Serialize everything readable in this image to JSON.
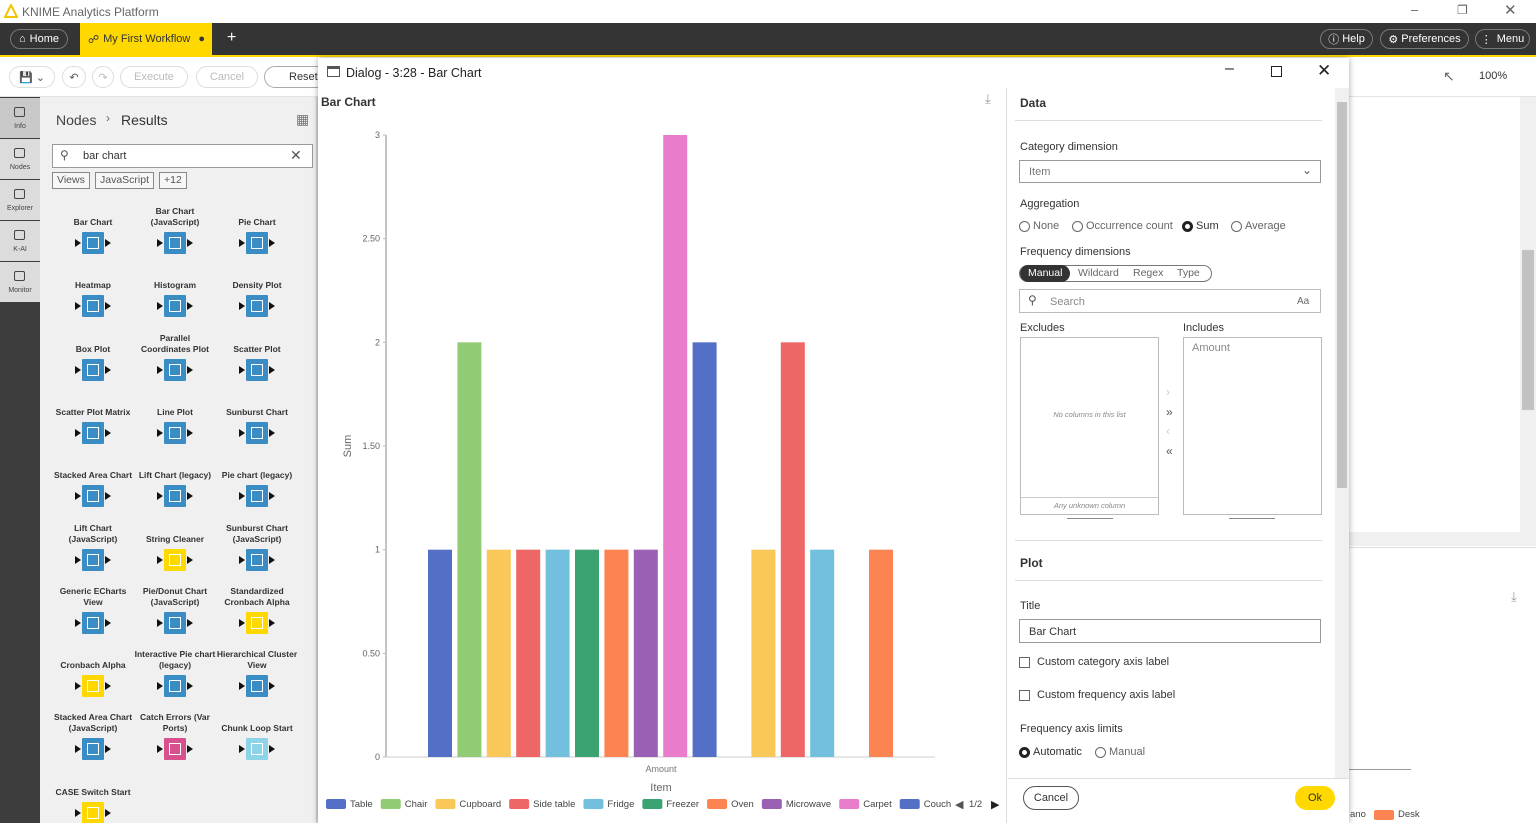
{
  "window": {
    "title": "KNIME Analytics Platform"
  },
  "tabs": {
    "home": "Home",
    "workflow": "My First Workflow",
    "help": "Help",
    "preferences": "Preferences",
    "menu": "Menu"
  },
  "toolbar": {
    "execute": "Execute",
    "cancel": "Cancel",
    "reset": "Reset",
    "zoom": "100%"
  },
  "sidebar": [
    "Info",
    "Nodes",
    "Explorer",
    "K-AI",
    "Monitor"
  ],
  "node_repository": {
    "breadcrumb": [
      "Nodes",
      "Results"
    ],
    "search": "bar chart",
    "tags": [
      "Views",
      "JavaScript",
      "+12"
    ],
    "nodes": [
      {
        "label": "Bar Chart",
        "color": "#3a8dc4"
      },
      {
        "label": "Bar Chart (JavaScript)",
        "color": "#3a8dc4"
      },
      {
        "label": "Pie Chart",
        "color": "#3a8dc4"
      },
      {
        "label": "Heatmap",
        "color": "#3a8dc4"
      },
      {
        "label": "Histogram",
        "color": "#3a8dc4"
      },
      {
        "label": "Density Plot",
        "color": "#3a8dc4"
      },
      {
        "label": "Box Plot",
        "color": "#3a8dc4"
      },
      {
        "label": "Parallel Coordinates Plot",
        "color": "#3a8dc4"
      },
      {
        "label": "Scatter Plot",
        "color": "#3a8dc4"
      },
      {
        "label": "Scatter Plot Matrix",
        "color": "#3a8dc4"
      },
      {
        "label": "Line Plot",
        "color": "#3a8dc4"
      },
      {
        "label": "Sunburst Chart",
        "color": "#3a8dc4"
      },
      {
        "label": "Stacked Area Chart",
        "color": "#3a8dc4"
      },
      {
        "label": "Lift Chart (legacy)",
        "color": "#3a8dc4"
      },
      {
        "label": "Pie chart (legacy)",
        "color": "#3a8dc4"
      },
      {
        "label": "Lift Chart (JavaScript)",
        "color": "#3a8dc4"
      },
      {
        "label": "String Cleaner",
        "color": "#ffd800"
      },
      {
        "label": "Sunburst Chart (JavaScript)",
        "color": "#3a8dc4"
      },
      {
        "label": "Generic ECharts View",
        "color": "#3a8dc4"
      },
      {
        "label": "Pie/Donut Chart (JavaScript)",
        "color": "#3a8dc4"
      },
      {
        "label": "Standardized Cronbach Alpha",
        "color": "#ffd800"
      },
      {
        "label": "Cronbach Alpha",
        "color": "#ffd800"
      },
      {
        "label": "Interactive Pie chart (legacy)",
        "color": "#3a8dc4"
      },
      {
        "label": "Hierarchical Cluster View",
        "color": "#3a8dc4"
      },
      {
        "label": "Stacked Area Chart (JavaScript)",
        "color": "#3a8dc4"
      },
      {
        "label": "Catch Errors (Var Ports)",
        "color": "#d9508f"
      },
      {
        "label": "Chunk Loop Start",
        "color": "#8ed4e8"
      },
      {
        "label": "CASE Switch Start",
        "color": "#ffd800"
      }
    ]
  },
  "dialog": {
    "title": "Dialog - 3:28 - Bar Chart",
    "settings": {
      "data_section": "Data",
      "category_dimension": {
        "label": "Category dimension",
        "value": "Item"
      },
      "aggregation": {
        "label": "Aggregation",
        "options": [
          "None",
          "Occurrence count",
          "Sum",
          "Average"
        ],
        "selected": 2
      },
      "frequency_dimensions": {
        "label": "Frequency dimensions",
        "modes": [
          "Manual",
          "Wildcard",
          "Regex",
          "Type"
        ],
        "selected": 0,
        "search": "Search",
        "case": "Aa",
        "excludes": {
          "label": "Excludes",
          "empty": "No columns in this list",
          "unknown": "Any unknown column"
        },
        "includes": {
          "label": "Includes",
          "items": [
            "Amount"
          ]
        }
      },
      "plot_section": "Plot",
      "title": {
        "label": "Title",
        "value": "Bar Chart"
      },
      "checkboxes": [
        "Custom category axis label",
        "Custom frequency axis label"
      ],
      "axis_limits": {
        "label": "Frequency axis limits",
        "options": [
          "Automatic",
          "Manual"
        ],
        "selected": 0
      }
    },
    "buttons": {
      "cancel": "Cancel",
      "ok": "Ok"
    }
  },
  "chart_data": {
    "type": "bar",
    "title": "Bar Chart",
    "x_label": "Item",
    "series_name": "Amount",
    "y_label": "Sum",
    "categories": [
      "Table",
      "Chair",
      "Cupboard",
      "Side table",
      "Fridge",
      "Freezer",
      "Oven",
      "Microwave",
      "Carpet",
      "Couch",
      null,
      null,
      null,
      null,
      null,
      null
    ],
    "values": [
      1,
      2,
      1,
      1,
      1,
      1,
      1,
      1,
      3,
      2,
      0,
      1,
      2,
      1,
      0,
      1
    ],
    "colors": [
      "#5470c6",
      "#91cc75",
      "#fac858",
      "#ee6666",
      "#73c0de",
      "#3ba272",
      "#fc8452",
      "#9a60b4",
      "#ea7ccc",
      "#5470c6",
      "#91cc75",
      "#fac858",
      "#ee6666",
      "#73c0de",
      "#3ba272",
      "#fc8452"
    ],
    "ylim": [
      0,
      3
    ],
    "yticks": [
      0,
      {
        "value": 0.5,
        "label": "0.50"
      },
      1,
      {
        "value": 1.5,
        "label": "1.50"
      },
      2,
      {
        "value": 2.5,
        "label": "2.50"
      },
      3
    ],
    "legend_page": "1/2",
    "grid": false
  },
  "background_legend": [
    {
      "label": "ano",
      "color": null
    },
    {
      "label": "Desk",
      "color": "#fc8452"
    }
  ]
}
